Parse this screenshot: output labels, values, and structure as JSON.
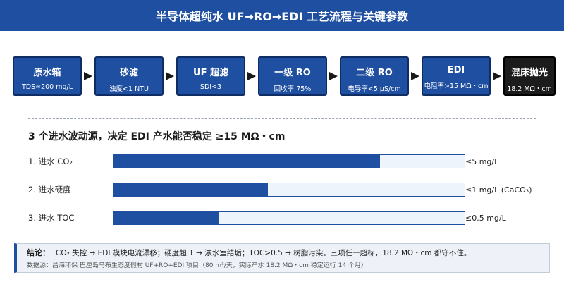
{
  "header": {
    "title": "半导体超纯水 UF→RO→EDI 工艺流程与关键参数"
  },
  "process": {
    "steps": [
      {
        "name": "原水箱",
        "param": "TDS≈200 mg/L"
      },
      {
        "name": "砂滤",
        "param": "浊度<1 NTU"
      },
      {
        "name": "UF 超滤",
        "param": "SDI<3"
      },
      {
        "name": "一级 RO",
        "param": "回收率 75%"
      },
      {
        "name": "二级 RO",
        "param": "电导率<5 μS/cm"
      },
      {
        "name": "EDI",
        "param": "电阻率>15 MΩ・cm"
      },
      {
        "name": "混床抛光",
        "param": "18.2 MΩ・cm"
      }
    ]
  },
  "fluctuation": {
    "title": "3 个进水波动源，决定 EDI 产水能否稳定 ≥15 MΩ・cm",
    "rows": [
      {
        "label": "1. 进水 CO₂",
        "threshold": "≤5 mg/L",
        "level": 0.76
      },
      {
        "label": "2. 进水硬度",
        "threshold": "≤1 mg/L (CaCO₃)",
        "level": 0.44
      },
      {
        "label": "3. 进水 TOC",
        "threshold": "≤0.5 mg/L",
        "level": 0.3
      }
    ]
  },
  "conclusion": {
    "label": "结论：",
    "text": "CO₂ 失控 → EDI 模块电流漂移；硬度超 1 → 浓水室结垢；TOC>0.5 → 树脂污染。三项任一超标，18.2 MΩ・cm 都守不住。",
    "source": "数据源：昌海环保 巴厘岛乌布生态度假村 UF+RO+EDI 项目（80 m³/天，实际产水 18.2 MΩ・cm 稳定运行 14 个月）"
  },
  "colors": {
    "primary": "#1f4fa0",
    "final_step": "#1c1c1c",
    "track": "#eef4fc"
  },
  "icons": {
    "flow_arrow": "arrow-right-icon"
  }
}
